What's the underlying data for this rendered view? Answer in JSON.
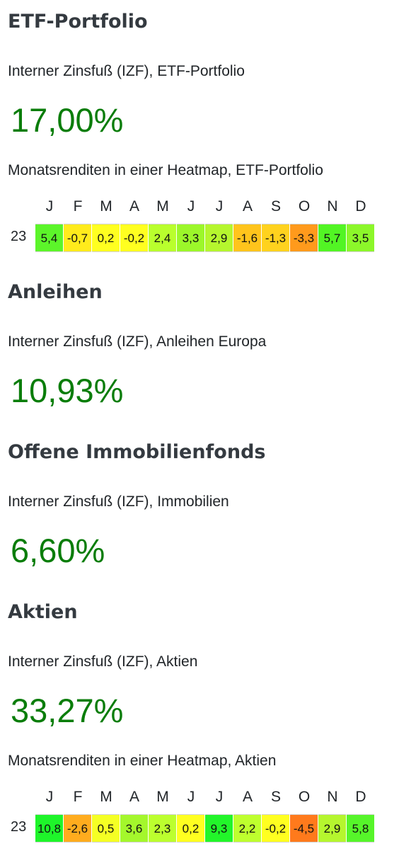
{
  "sections": [
    {
      "heading": "ETF-Portfolio",
      "irr_label": "Interner Zinsfuß (IZF), ETF-Portfolio",
      "irr_value": "17,00%",
      "heatmap_label": "Monatsrenditen in einer Heatmap, ETF-Portfolio",
      "heatmap": {
        "year": "23",
        "values": [
          "5,4",
          "-0,7",
          "0,2",
          "-0,2",
          "2,4",
          "3,3",
          "2,9",
          "-1,6",
          "-1,3",
          "-3,3",
          "5,7",
          "3,5"
        ],
        "colors": [
          "#5cf52a",
          "#ffeb1c",
          "#ffff20",
          "#ffff20",
          "#b9ff2d",
          "#9cf72a",
          "#b5f62e",
          "#ffc41c",
          "#ffd21e",
          "#ff9a1c",
          "#52f524",
          "#8cf72a"
        ]
      }
    },
    {
      "heading": "Anleihen",
      "irr_label": "Interner Zinsfuß (IZF), Anleihen Europa",
      "irr_value": "10,93%"
    },
    {
      "heading": "Offene Immobilienfonds",
      "irr_label": "Interner Zinsfuß (IZF), Immobilien",
      "irr_value": "6,60%"
    },
    {
      "heading": "Aktien",
      "irr_label": "Interner Zinsfuß (IZF), Aktien",
      "irr_value": "33,27%",
      "heatmap_label": "Monatsrenditen in einer Heatmap, Aktien",
      "heatmap": {
        "year": "23",
        "values": [
          "10,8",
          "-2,6",
          "0,5",
          "3,6",
          "2,3",
          "0,2",
          "9,3",
          "2,2",
          "-0,2",
          "-4,5",
          "2,9",
          "5,8"
        ],
        "colors": [
          "#1ef52a",
          "#ffac1e",
          "#f5ff24",
          "#a4f72c",
          "#bcff2e",
          "#ffff20",
          "#22f52a",
          "#beff2e",
          "#ffff20",
          "#ff7a1c",
          "#b5f62e",
          "#56f52a"
        ]
      }
    }
  ],
  "months": [
    "J",
    "F",
    "M",
    "A",
    "M",
    "J",
    "J",
    "A",
    "S",
    "O",
    "N",
    "D"
  ]
}
